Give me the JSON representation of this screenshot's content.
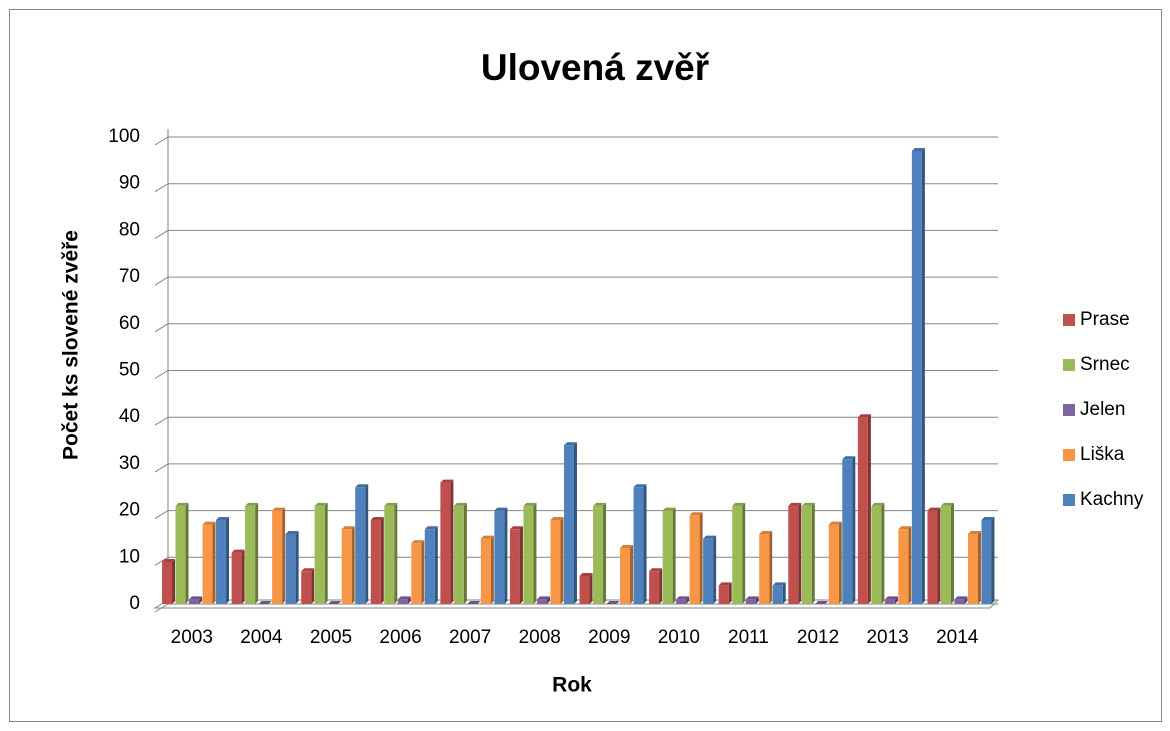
{
  "chart_data": {
    "type": "bar",
    "title": "Ulovená zvěř",
    "x_label": "Rok",
    "y_label": "Počet ks slovené zvěře",
    "categories": [
      "2003",
      "2004",
      "2005",
      "2006",
      "2007",
      "2008",
      "2009",
      "2010",
      "2011",
      "2012",
      "2013",
      "2014"
    ],
    "series": [
      {
        "name": "Prase",
        "color": "#c0504d",
        "values": [
          9,
          11,
          7,
          18,
          26,
          16,
          6,
          7,
          4,
          21,
          40,
          20
        ]
      },
      {
        "name": "Srnec",
        "color": "#9bbb59",
        "values": [
          21,
          21,
          21,
          21,
          21,
          21,
          21,
          20,
          21,
          21,
          21,
          21
        ]
      },
      {
        "name": "Jelen",
        "color": "#8064a2",
        "values": [
          1,
          0,
          0,
          1,
          0,
          1,
          0,
          1,
          1,
          0,
          1,
          1
        ]
      },
      {
        "name": "Liška",
        "color": "#f79646",
        "values": [
          17,
          20,
          16,
          13,
          14,
          18,
          12,
          19,
          15,
          17,
          16,
          15
        ]
      },
      {
        "name": "Kachny",
        "color": "#4f81bd",
        "values": [
          18,
          15,
          25,
          16,
          20,
          34,
          25,
          14,
          4,
          31,
          97,
          18
        ]
      }
    ],
    "ylim": [
      0,
      100
    ],
    "yticks": [
      0,
      10,
      20,
      30,
      40,
      50,
      60,
      70,
      80,
      90,
      100
    ],
    "grid": true,
    "legend": "right"
  }
}
